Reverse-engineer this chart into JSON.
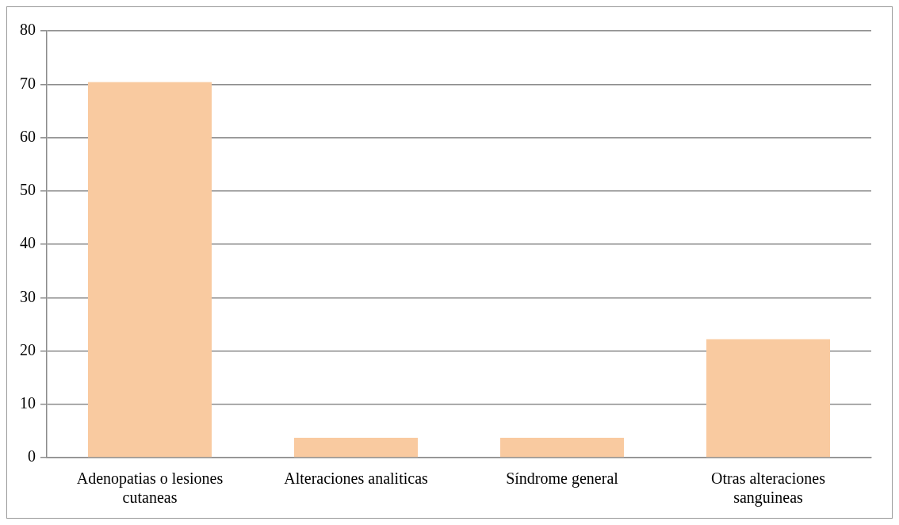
{
  "chart_data": {
    "type": "bar",
    "categories": [
      "Adenopatias o lesiones cutaneas",
      "Alteraciones analiticas",
      "Síndrome general",
      "Otras alteraciones sanguineas"
    ],
    "values": [
      70.4,
      3.7,
      3.7,
      22.2
    ],
    "color": "#f9caa0",
    "ylim": [
      0,
      80
    ],
    "yticks": [
      0,
      10,
      20,
      30,
      40,
      50,
      60,
      70,
      80
    ],
    "grid": "y",
    "legend": false
  }
}
